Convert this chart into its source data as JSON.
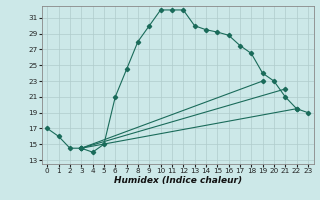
{
  "xlabel": "Humidex (Indice chaleur)",
  "bg_color": "#cce8e8",
  "grid_color": "#b0cccc",
  "line_color": "#1a6b5a",
  "xlim": [
    -0.5,
    23.5
  ],
  "ylim": [
    12.5,
    32.5
  ],
  "xtick_labels": [
    "0",
    "1",
    "2",
    "3",
    "4",
    "5",
    "6",
    "7",
    "8",
    "9",
    "10",
    "11",
    "12",
    "13",
    "14",
    "15",
    "16",
    "17",
    "18",
    "19",
    "20",
    "21",
    "22",
    "23"
  ],
  "xticks": [
    0,
    1,
    2,
    3,
    4,
    5,
    6,
    7,
    8,
    9,
    10,
    11,
    12,
    13,
    14,
    15,
    16,
    17,
    18,
    19,
    20,
    21,
    22,
    23
  ],
  "yticks": [
    13,
    15,
    17,
    19,
    21,
    23,
    25,
    27,
    29,
    31
  ],
  "line1_x": [
    0,
    1,
    2,
    3,
    4,
    5,
    6,
    7,
    8,
    9,
    10,
    11,
    12,
    13,
    14,
    15,
    16,
    17,
    18,
    19,
    20,
    21,
    22,
    23
  ],
  "line1_y": [
    17,
    16,
    14.5,
    14.5,
    14,
    15,
    21,
    24.5,
    28,
    30,
    32,
    32,
    32,
    30,
    29.5,
    29.2,
    28.8,
    27.5,
    26.5,
    24,
    23,
    21,
    19.5,
    19
  ],
  "line2_x": [
    3,
    19
  ],
  "line2_y": [
    14.5,
    23
  ],
  "line3_x": [
    3,
    21
  ],
  "line3_y": [
    14.5,
    22
  ],
  "line4_x": [
    3,
    22
  ],
  "line4_y": [
    14.5,
    19.5
  ]
}
